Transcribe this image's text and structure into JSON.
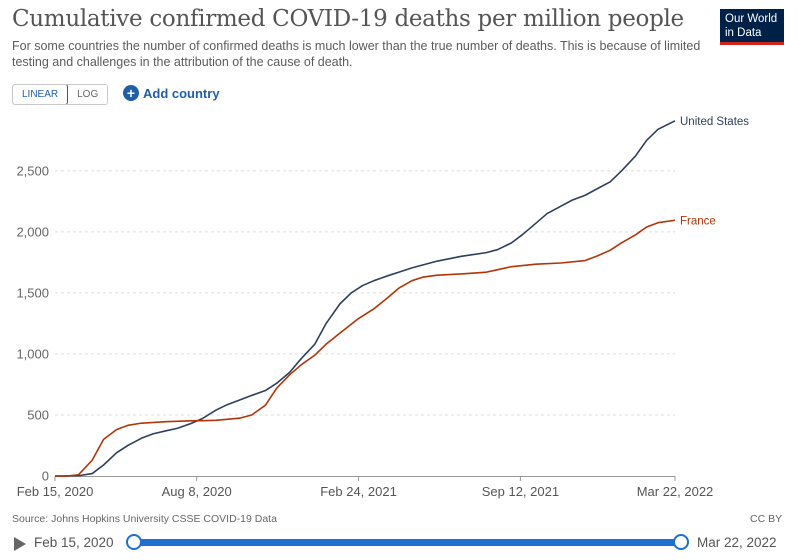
{
  "title": "Cumulative confirmed COVID-19 deaths per million people",
  "subtitle": "For some countries the number of confirmed deaths is much lower than the true number of deaths. This is because of limited testing and challenges in the attribution of the cause of death.",
  "logo": {
    "line1": "Our World",
    "line2": "in Data"
  },
  "controls": {
    "linear_label": "LINEAR",
    "log_label": "LOG",
    "add_country_label": "Add country",
    "active_scale": "linear"
  },
  "source": "Source: Johns Hopkins University CSSE COVID-19 Data",
  "license": "CC BY",
  "timeline": {
    "start_label": "Feb 15, 2020",
    "end_label": "Mar 22, 2022"
  },
  "chart_data": {
    "type": "line",
    "x_type": "date",
    "ylim": [
      0,
      2900
    ],
    "yticks": [
      {
        "value": 0,
        "label": "0"
      },
      {
        "value": 500,
        "label": "500"
      },
      {
        "value": 1000,
        "label": "1,000"
      },
      {
        "value": 1500,
        "label": "1,500"
      },
      {
        "value": 2000,
        "label": "2,000"
      },
      {
        "value": 2500,
        "label": "2,500"
      }
    ],
    "xticks": [
      {
        "date": "2020-02-15",
        "label": "Feb 15, 2020"
      },
      {
        "date": "2020-08-08",
        "label": "Aug 8, 2020"
      },
      {
        "date": "2021-02-24",
        "label": "Feb 24, 2021"
      },
      {
        "date": "2021-09-12",
        "label": "Sep 12, 2021"
      },
      {
        "date": "2022-03-22",
        "label": "Mar 22, 2022"
      }
    ],
    "grid": "horizontal",
    "legend": "inline-right",
    "series": [
      {
        "name": "United States",
        "color": "#2e3f5c",
        "points": [
          [
            "2020-02-15",
            0
          ],
          [
            "2020-03-15",
            2
          ],
          [
            "2020-04-01",
            20
          ],
          [
            "2020-04-15",
            90
          ],
          [
            "2020-05-01",
            190
          ],
          [
            "2020-05-15",
            250
          ],
          [
            "2020-06-01",
            310
          ],
          [
            "2020-06-15",
            345
          ],
          [
            "2020-07-01",
            370
          ],
          [
            "2020-07-15",
            390
          ],
          [
            "2020-08-01",
            430
          ],
          [
            "2020-08-15",
            470
          ],
          [
            "2020-09-01",
            540
          ],
          [
            "2020-09-15",
            585
          ],
          [
            "2020-10-01",
            625
          ],
          [
            "2020-10-15",
            660
          ],
          [
            "2020-11-01",
            700
          ],
          [
            "2020-11-15",
            760
          ],
          [
            "2020-12-01",
            850
          ],
          [
            "2020-12-15",
            960
          ],
          [
            "2021-01-01",
            1080
          ],
          [
            "2021-01-15",
            1250
          ],
          [
            "2021-02-01",
            1410
          ],
          [
            "2021-02-15",
            1500
          ],
          [
            "2021-03-01",
            1560
          ],
          [
            "2021-03-15",
            1600
          ],
          [
            "2021-04-01",
            1640
          ],
          [
            "2021-04-15",
            1670
          ],
          [
            "2021-05-01",
            1705
          ],
          [
            "2021-06-01",
            1760
          ],
          [
            "2021-07-01",
            1800
          ],
          [
            "2021-08-01",
            1830
          ],
          [
            "2021-08-15",
            1855
          ],
          [
            "2021-09-01",
            1910
          ],
          [
            "2021-09-15",
            1980
          ],
          [
            "2021-10-01",
            2070
          ],
          [
            "2021-10-15",
            2150
          ],
          [
            "2021-11-01",
            2210
          ],
          [
            "2021-11-15",
            2260
          ],
          [
            "2021-12-01",
            2300
          ],
          [
            "2021-12-15",
            2350
          ],
          [
            "2022-01-01",
            2410
          ],
          [
            "2022-01-15",
            2500
          ],
          [
            "2022-02-01",
            2620
          ],
          [
            "2022-02-15",
            2750
          ],
          [
            "2022-03-01",
            2840
          ],
          [
            "2022-03-22",
            2910
          ]
        ]
      },
      {
        "name": "France",
        "color": "#b13507",
        "points": [
          [
            "2020-02-15",
            0
          ],
          [
            "2020-03-01",
            0
          ],
          [
            "2020-03-15",
            10
          ],
          [
            "2020-04-01",
            130
          ],
          [
            "2020-04-15",
            300
          ],
          [
            "2020-05-01",
            380
          ],
          [
            "2020-05-15",
            415
          ],
          [
            "2020-06-01",
            433
          ],
          [
            "2020-07-01",
            445
          ],
          [
            "2020-08-01",
            452
          ],
          [
            "2020-08-15",
            453
          ],
          [
            "2020-09-01",
            456
          ],
          [
            "2020-10-01",
            475
          ],
          [
            "2020-10-15",
            500
          ],
          [
            "2020-11-01",
            580
          ],
          [
            "2020-11-15",
            720
          ],
          [
            "2020-12-01",
            830
          ],
          [
            "2020-12-15",
            910
          ],
          [
            "2021-01-01",
            990
          ],
          [
            "2021-01-15",
            1080
          ],
          [
            "2021-02-01",
            1170
          ],
          [
            "2021-02-24",
            1290
          ],
          [
            "2021-03-15",
            1370
          ],
          [
            "2021-04-01",
            1460
          ],
          [
            "2021-04-15",
            1540
          ],
          [
            "2021-05-01",
            1600
          ],
          [
            "2021-05-15",
            1630
          ],
          [
            "2021-06-01",
            1645
          ],
          [
            "2021-07-01",
            1655
          ],
          [
            "2021-08-01",
            1670
          ],
          [
            "2021-08-15",
            1690
          ],
          [
            "2021-09-01",
            1715
          ],
          [
            "2021-10-01",
            1735
          ],
          [
            "2021-11-01",
            1745
          ],
          [
            "2021-12-01",
            1765
          ],
          [
            "2021-12-15",
            1800
          ],
          [
            "2022-01-01",
            1850
          ],
          [
            "2022-01-15",
            1910
          ],
          [
            "2022-02-01",
            1975
          ],
          [
            "2022-02-15",
            2040
          ],
          [
            "2022-03-01",
            2075
          ],
          [
            "2022-03-22",
            2095
          ]
        ]
      }
    ]
  }
}
